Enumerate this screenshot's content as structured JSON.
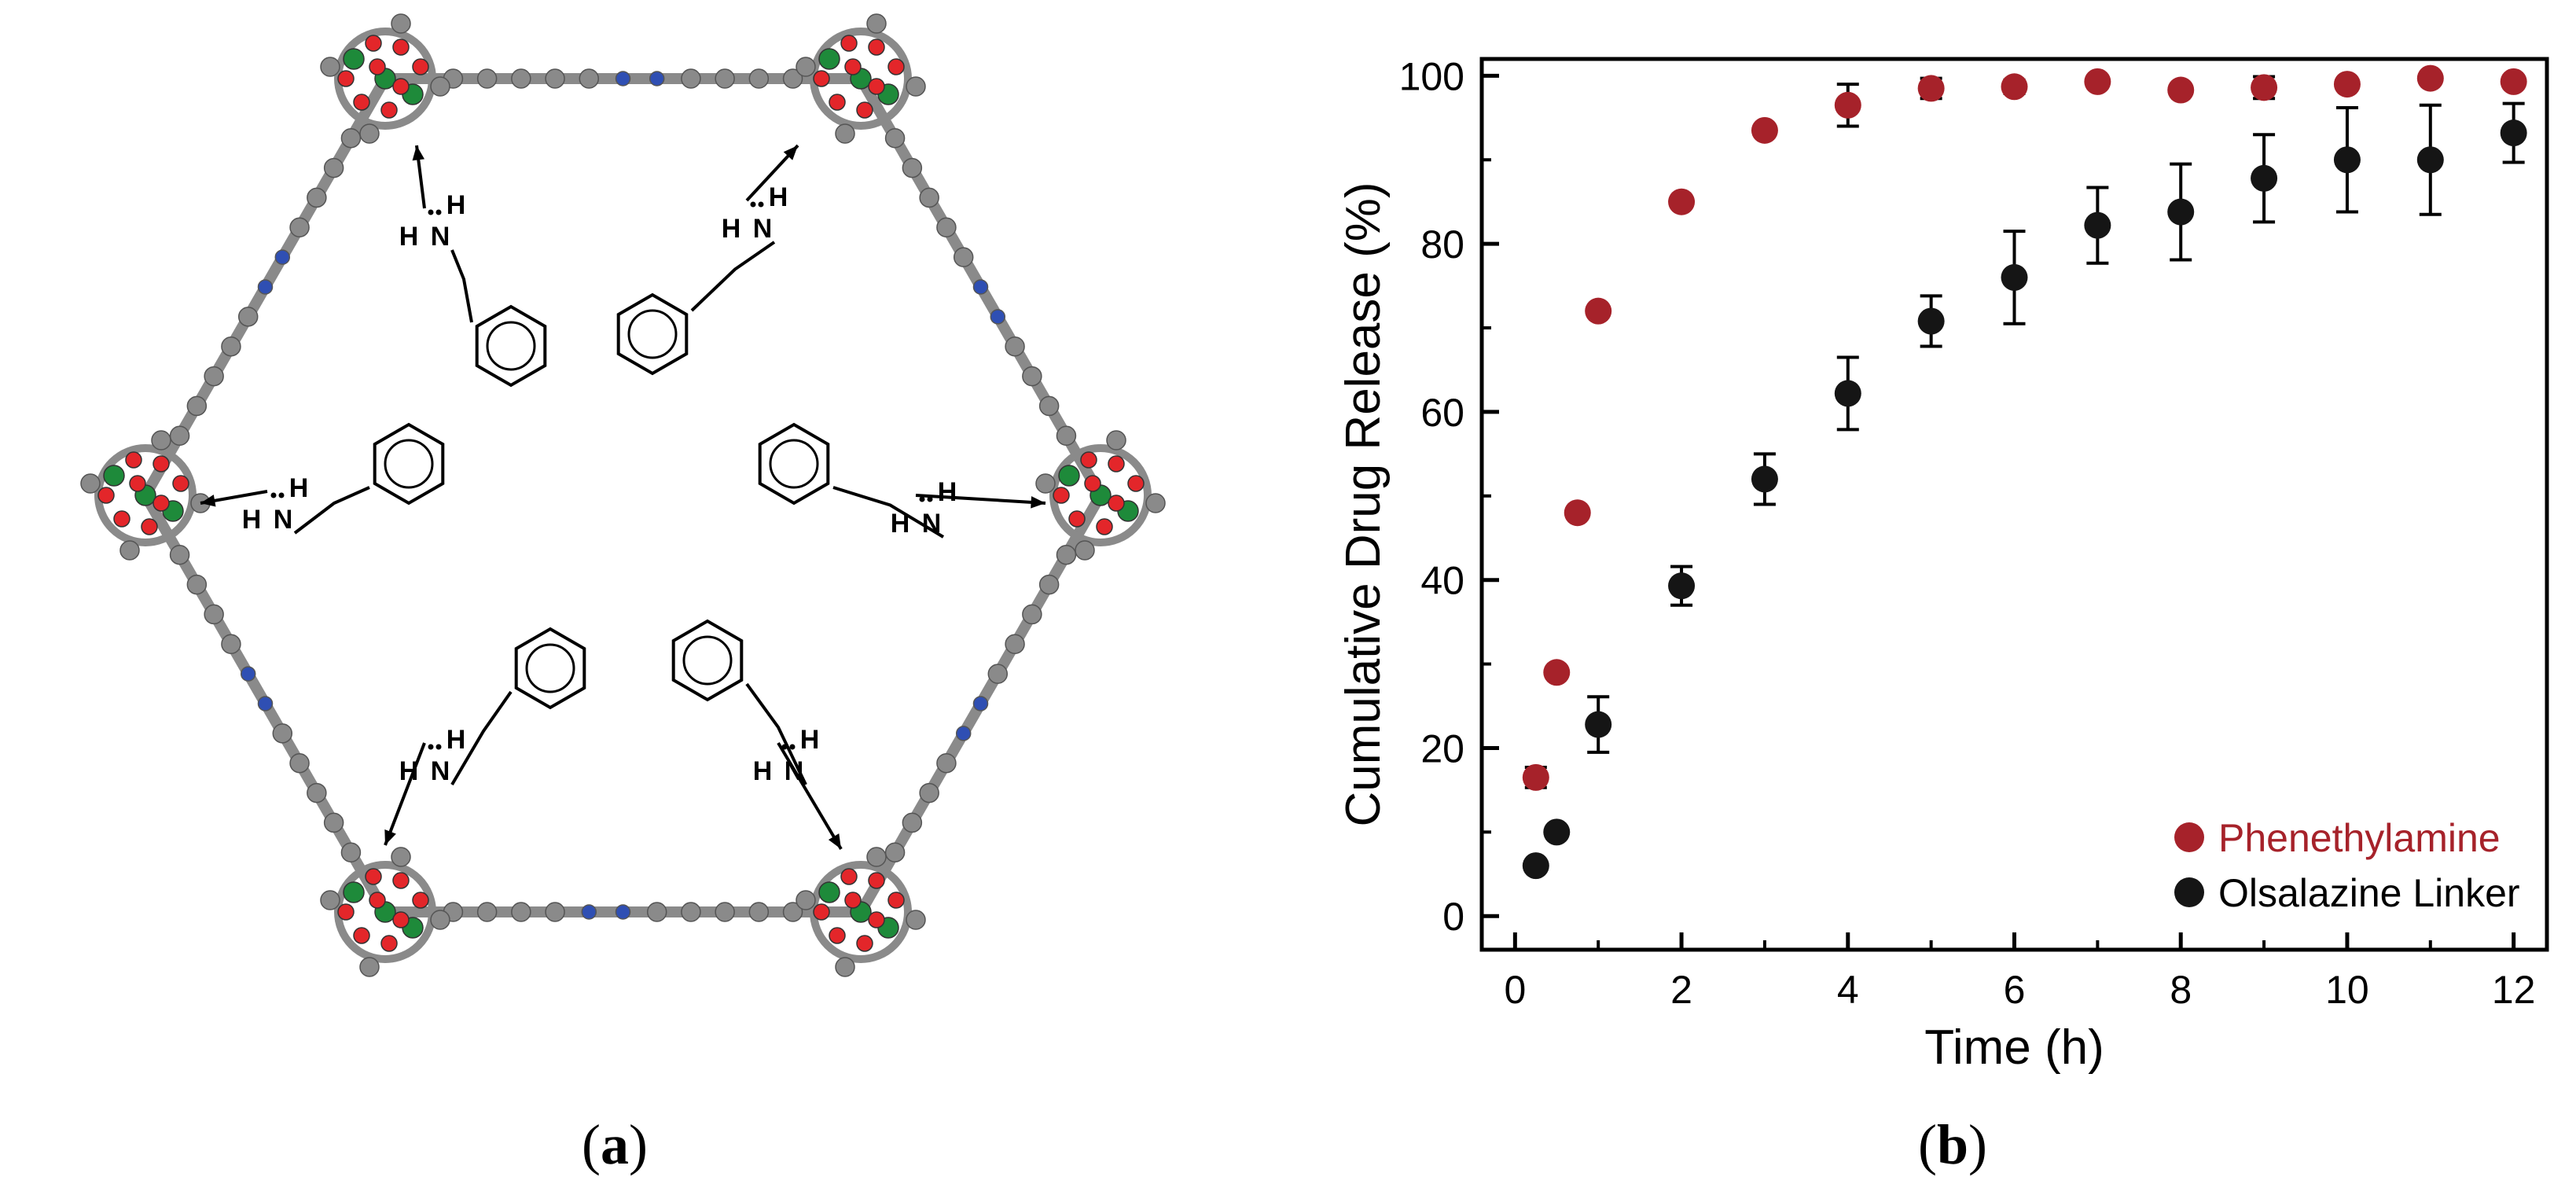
{
  "panels": {
    "a_label": "a",
    "b_label": "b"
  },
  "diagram_a": {
    "molecule_atoms": {
      "N": "N",
      "H": "H"
    },
    "colors": {
      "framework": "#8a8a8a",
      "oxygen": "#e3262a",
      "metal": "#1e8a3a",
      "nitrogen": "#2f4fb3"
    }
  },
  "chart_data": {
    "type": "scatter",
    "xlabel": "Time (h)",
    "ylabel": "Cumulative Drug Release (%)",
    "xlim": [
      -0.4,
      12.4
    ],
    "ylim": [
      -4,
      102
    ],
    "xticks": [
      0,
      2,
      4,
      6,
      8,
      10,
      12
    ],
    "yticks": [
      0,
      20,
      40,
      60,
      80,
      100
    ],
    "legend_position": "bottom-right",
    "series": [
      {
        "name": "Phenethylamine",
        "color": "#a6222a",
        "points": [
          {
            "x": 0.25,
            "y": 16.5,
            "err": 1.2
          },
          {
            "x": 0.5,
            "y": 29.0,
            "err": 0
          },
          {
            "x": 0.75,
            "y": 48.0,
            "err": 0
          },
          {
            "x": 1,
            "y": 72.0,
            "err": 0
          },
          {
            "x": 2,
            "y": 85.0,
            "err": 0
          },
          {
            "x": 3,
            "y": 93.5,
            "err": 0
          },
          {
            "x": 4,
            "y": 96.5,
            "err": 2.5
          },
          {
            "x": 5,
            "y": 98.5,
            "err": 1.2
          },
          {
            "x": 6,
            "y": 98.7,
            "err": 0.8
          },
          {
            "x": 7,
            "y": 99.3,
            "err": 0
          },
          {
            "x": 8,
            "y": 98.3,
            "err": 0
          },
          {
            "x": 9,
            "y": 98.6,
            "err": 1.3
          },
          {
            "x": 10,
            "y": 99.0,
            "err": 0.6
          },
          {
            "x": 11,
            "y": 99.7,
            "err": 0
          },
          {
            "x": 12,
            "y": 99.3,
            "err": 0.6
          }
        ]
      },
      {
        "name": "Olsalazine Linker",
        "color": "#151515",
        "points": [
          {
            "x": 0.25,
            "y": 6.0,
            "err": 0
          },
          {
            "x": 0.5,
            "y": 10.0,
            "err": 0
          },
          {
            "x": 1,
            "y": 22.8,
            "err": 3.3
          },
          {
            "x": 2,
            "y": 39.3,
            "err": 2.3
          },
          {
            "x": 3,
            "y": 52.0,
            "err": 3.0
          },
          {
            "x": 4,
            "y": 62.2,
            "err": 4.3
          },
          {
            "x": 5,
            "y": 70.8,
            "err": 3.0
          },
          {
            "x": 6,
            "y": 76.0,
            "err": 5.5
          },
          {
            "x": 7,
            "y": 82.2,
            "err": 4.5
          },
          {
            "x": 8,
            "y": 83.8,
            "err": 5.7
          },
          {
            "x": 9,
            "y": 87.8,
            "err": 5.2
          },
          {
            "x": 10,
            "y": 90.0,
            "err": 6.2
          },
          {
            "x": 11,
            "y": 90.0,
            "err": 6.5
          },
          {
            "x": 12,
            "y": 93.2,
            "err": 3.5
          }
        ]
      }
    ]
  }
}
